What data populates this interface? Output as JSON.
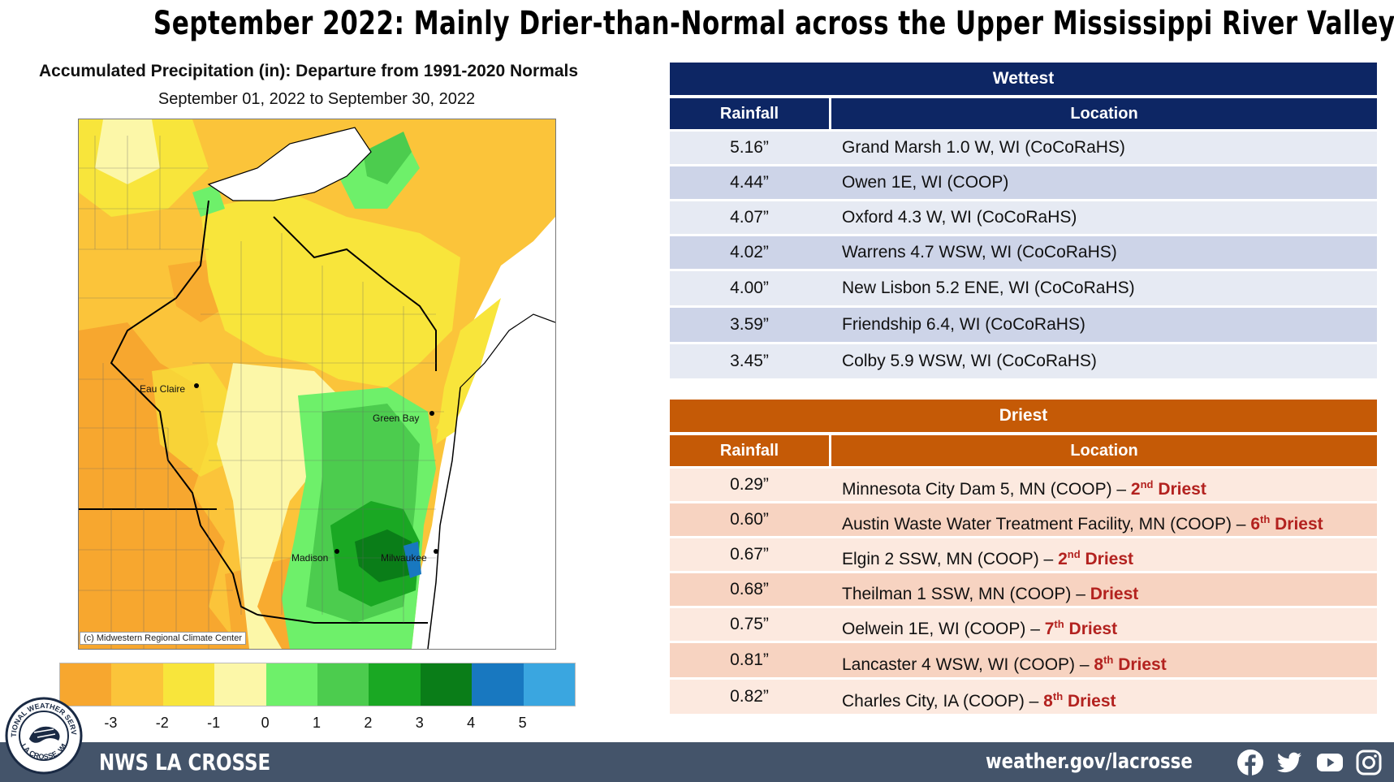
{
  "headline": "September 2022:  Mainly Drier-than-Normal across the Upper Mississippi River Valley",
  "map": {
    "title": "Accumulated Precipitation (in): Departure from 1991-2020 Normals",
    "subtitle": "September 01, 2022 to September 30, 2022",
    "credit": "(c) Midwestern Regional Climate Center",
    "cities": [
      {
        "name": "Eau Claire"
      },
      {
        "name": "Green Bay"
      },
      {
        "name": "Madison"
      },
      {
        "name": "Milwaukee"
      }
    ],
    "legend": {
      "colors": [
        "#f7a72f",
        "#fbc43a",
        "#f8e53b",
        "#fcf7a8",
        "#6ef06a",
        "#4ccc4e",
        "#1aa823",
        "#0a7d18",
        "#1878c0",
        "#3aa6e0"
      ],
      "labels": [
        "-3",
        "-2",
        "-1",
        "0",
        "1",
        "2",
        "3",
        "4",
        "5"
      ]
    }
  },
  "wettest": {
    "title": "Wettest",
    "col_rainfall": "Rainfall",
    "col_location": "Location",
    "rows": [
      {
        "rainfall": "5.16”",
        "location": "Grand Marsh 1.0 W, WI (CoCoRaHS)"
      },
      {
        "rainfall": "4.44”",
        "location": "Owen 1E, WI (COOP)"
      },
      {
        "rainfall": "4.07”",
        "location": "Oxford 4.3 W, WI (CoCoRaHS)"
      },
      {
        "rainfall": "4.02”",
        "location": "Warrens 4.7 WSW, WI (CoCoRaHS)"
      },
      {
        "rainfall": "4.00”",
        "location": "New Lisbon 5.2 ENE, WI (CoCoRaHS)"
      },
      {
        "rainfall": "3.59”",
        "location": "Friendship 6.4, WI (CoCoRaHS)"
      },
      {
        "rainfall": "3.45”",
        "location": "Colby 5.9 WSW, WI (CoCoRaHS)"
      }
    ]
  },
  "driest": {
    "title": "Driest",
    "col_rainfall": "Rainfall",
    "col_location": "Location",
    "rows": [
      {
        "rainfall": "0.29”",
        "location": "Minnesota City Dam 5, MN (COOP) – ",
        "rank_num": "2",
        "rank_sup": "nd",
        "rank_word": " Driest"
      },
      {
        "rainfall": "0.60”",
        "location": "Austin Waste Water Treatment Facility, MN (COOP) – ",
        "rank_num": "6",
        "rank_sup": "th",
        "rank_word": " Driest"
      },
      {
        "rainfall": "0.67”",
        "location": "Elgin 2 SSW, MN (COOP) – ",
        "rank_num": "2",
        "rank_sup": "nd",
        "rank_word": " Driest"
      },
      {
        "rainfall": "0.68”",
        "location": "Theilman 1 SSW, MN (COOP) – ",
        "rank_num": "",
        "rank_sup": "",
        "rank_word": "Driest"
      },
      {
        "rainfall": "0.75”",
        "location": "Oelwein 1E, WI (COOP) – ",
        "rank_num": "7",
        "rank_sup": "th",
        "rank_word": " Driest"
      },
      {
        "rainfall": "0.81”",
        "location": "Lancaster 4 WSW, WI (COOP) – ",
        "rank_num": "8",
        "rank_sup": "th",
        "rank_word": " Driest"
      },
      {
        "rainfall": "0.82”",
        "location": "Charles City, IA (COOP) – ",
        "rank_num": "8",
        "rank_sup": "th",
        "rank_word": " Driest"
      }
    ]
  },
  "footer": {
    "office": "NWS LA CROSSE",
    "url": "weather.gov/lacrosse",
    "logo_text": "NATIONAL WEATHER SERVICE",
    "logo_subtext": "LA CROSSE, WI",
    "social_icons": [
      "facebook-icon",
      "twitter-icon",
      "youtube-icon",
      "instagram-icon"
    ],
    "bar_color": "#44546a"
  }
}
